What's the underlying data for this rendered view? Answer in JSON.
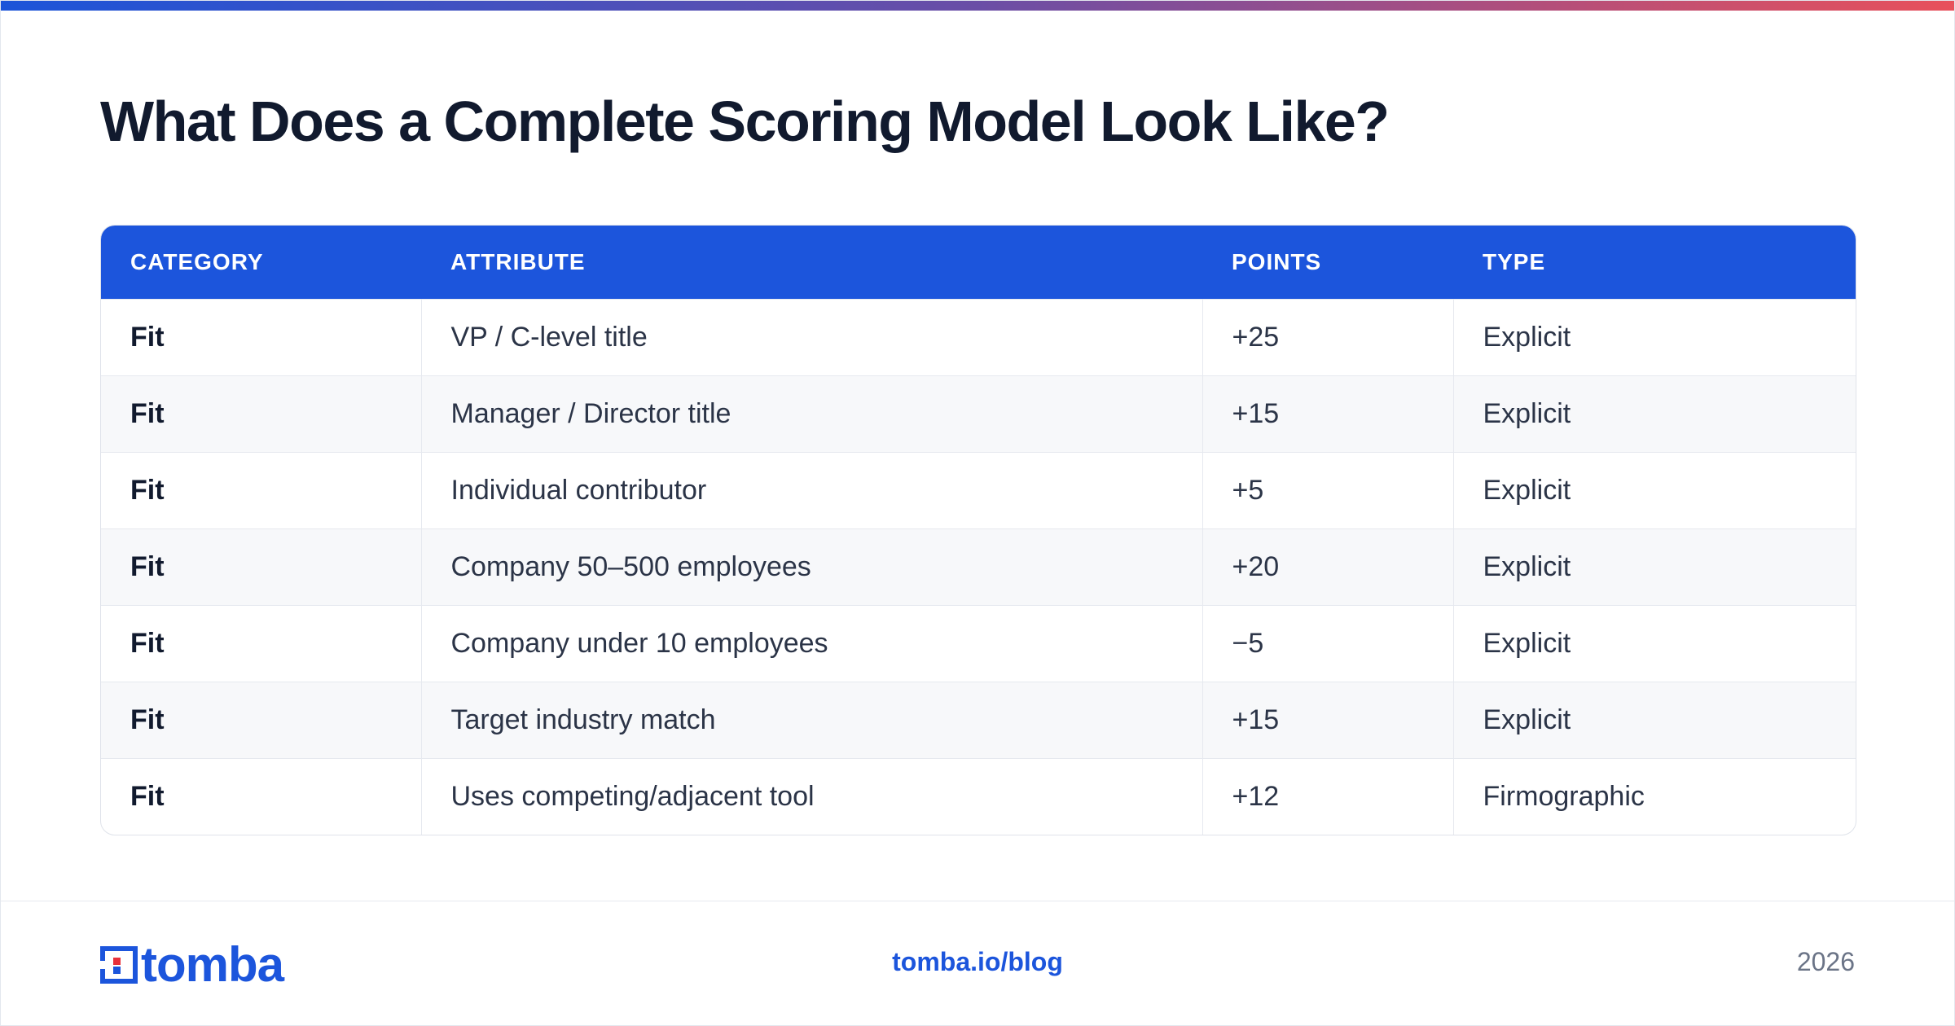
{
  "title": "What Does a Complete Scoring Model Look Like?",
  "colors": {
    "accent": "#1c55dc",
    "gradient_end": "#e8505b",
    "heading": "#111a2e"
  },
  "table": {
    "headers": [
      "CATEGORY",
      "ATTRIBUTE",
      "POINTS",
      "TYPE"
    ],
    "rows": [
      [
        "Fit",
        "VP / C-level title",
        "+25",
        "Explicit"
      ],
      [
        "Fit",
        "Manager / Director title",
        "+15",
        "Explicit"
      ],
      [
        "Fit",
        "Individual contributor",
        "+5",
        "Explicit"
      ],
      [
        "Fit",
        "Company 50–500 employees",
        "+20",
        "Explicit"
      ],
      [
        "Fit",
        "Company under 10 employees",
        "−5",
        "Explicit"
      ],
      [
        "Fit",
        "Target industry match",
        "+15",
        "Explicit"
      ],
      [
        "Fit",
        "Uses competing/adjacent tool",
        "+12",
        "Firmographic"
      ]
    ]
  },
  "footer": {
    "logo_text": "tomba",
    "logo_icon": "tomba-logo-icon",
    "link": "tomba.io/blog",
    "year": "2026"
  }
}
